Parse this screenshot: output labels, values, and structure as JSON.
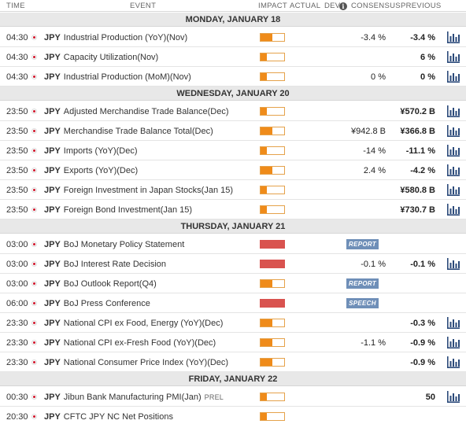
{
  "columns": {
    "time": "TIME",
    "event": "EVENT",
    "impact": "IMPACT",
    "actual": "ACTUAL",
    "dev": "DEV",
    "info_icon": "i",
    "consensus": "CONSENSUS",
    "previous": "PREVIOUS"
  },
  "colors": {
    "medium_impact": "#ef8b1a",
    "high_impact": "#d9534f",
    "tag_bg": "#6f8fb8",
    "date_band": "#e8e8e8"
  },
  "icons": {
    "flag": "japan-flag-icon",
    "chart": "bar-chart-icon"
  },
  "days": [
    {
      "date": "MONDAY, JANUARY 18",
      "events": [
        {
          "time": "04:30",
          "currency": "JPY",
          "name": "Industrial Production (YoY)(Nov)",
          "impact": "medium",
          "impact_level": 0.5,
          "actual": "",
          "tag": "",
          "consensus": "-3.4 %",
          "previous": "-3.4 %",
          "chart": true
        },
        {
          "time": "04:30",
          "currency": "JPY",
          "name": "Capacity Utilization(Nov)",
          "impact": "low",
          "impact_level": 0.25,
          "actual": "",
          "tag": "",
          "consensus": "",
          "previous": "6 %",
          "chart": true
        },
        {
          "time": "04:30",
          "currency": "JPY",
          "name": "Industrial Production (MoM)(Nov)",
          "impact": "low",
          "impact_level": 0.25,
          "actual": "",
          "tag": "",
          "consensus": "0 %",
          "previous": "0 %",
          "chart": true
        }
      ]
    },
    {
      "date": "WEDNESDAY, JANUARY 20",
      "events": [
        {
          "time": "23:50",
          "currency": "JPY",
          "name": "Adjusted Merchandise Trade Balance(Dec)",
          "impact": "low",
          "impact_level": 0.25,
          "actual": "",
          "tag": "",
          "consensus": "",
          "previous": "¥570.2 B",
          "chart": true
        },
        {
          "time": "23:50",
          "currency": "JPY",
          "name": "Merchandise Trade Balance Total(Dec)",
          "impact": "medium",
          "impact_level": 0.5,
          "actual": "",
          "tag": "",
          "consensus": "¥942.8 B",
          "previous": "¥366.8 B",
          "chart": true
        },
        {
          "time": "23:50",
          "currency": "JPY",
          "name": "Imports (YoY)(Dec)",
          "impact": "low",
          "impact_level": 0.25,
          "actual": "",
          "tag": "",
          "consensus": "-14 %",
          "previous": "-11.1 %",
          "chart": true
        },
        {
          "time": "23:50",
          "currency": "JPY",
          "name": "Exports (YoY)(Dec)",
          "impact": "medium",
          "impact_level": 0.5,
          "actual": "",
          "tag": "",
          "consensus": "2.4 %",
          "previous": "-4.2 %",
          "chart": true
        },
        {
          "time": "23:50",
          "currency": "JPY",
          "name": "Foreign Investment in Japan Stocks(Jan 15)",
          "impact": "low",
          "impact_level": 0.25,
          "actual": "",
          "tag": "",
          "consensus": "",
          "previous": "¥580.8 B",
          "chart": true
        },
        {
          "time": "23:50",
          "currency": "JPY",
          "name": "Foreign Bond Investment(Jan 15)",
          "impact": "low",
          "impact_level": 0.25,
          "actual": "",
          "tag": "",
          "consensus": "",
          "previous": "¥730.7 B",
          "chart": true
        }
      ]
    },
    {
      "date": "THURSDAY, JANUARY 21",
      "events": [
        {
          "time": "03:00",
          "currency": "JPY",
          "name": "BoJ Monetary Policy Statement",
          "impact": "high",
          "impact_level": 1,
          "actual": "",
          "tag": "REPORT",
          "consensus": "",
          "previous": "",
          "chart": false
        },
        {
          "time": "03:00",
          "currency": "JPY",
          "name": "BoJ Interest Rate Decision",
          "impact": "high",
          "impact_level": 1,
          "actual": "",
          "tag": "",
          "consensus": "-0.1 %",
          "previous": "-0.1 %",
          "chart": true
        },
        {
          "time": "03:00",
          "currency": "JPY",
          "name": "BoJ Outlook Report(Q4)",
          "impact": "medium",
          "impact_level": 0.5,
          "actual": "",
          "tag": "REPORT",
          "consensus": "",
          "previous": "",
          "chart": false
        },
        {
          "time": "06:00",
          "currency": "JPY",
          "name": "BoJ Press Conference",
          "impact": "high",
          "impact_level": 1,
          "actual": "",
          "tag": "SPEECH",
          "consensus": "",
          "previous": "",
          "chart": false
        },
        {
          "time": "23:30",
          "currency": "JPY",
          "name": "National CPI ex Food, Energy (YoY)(Dec)",
          "impact": "medium",
          "impact_level": 0.5,
          "actual": "",
          "tag": "",
          "consensus": "",
          "previous": "-0.3 %",
          "chart": true
        },
        {
          "time": "23:30",
          "currency": "JPY",
          "name": "National CPI ex-Fresh Food (YoY)(Dec)",
          "impact": "medium",
          "impact_level": 0.5,
          "actual": "",
          "tag": "",
          "consensus": "-1.1 %",
          "previous": "-0.9 %",
          "chart": true
        },
        {
          "time": "23:30",
          "currency": "JPY",
          "name": "National Consumer Price Index (YoY)(Dec)",
          "impact": "medium",
          "impact_level": 0.5,
          "actual": "",
          "tag": "",
          "consensus": "",
          "previous": "-0.9 %",
          "chart": true
        }
      ]
    },
    {
      "date": "FRIDAY, JANUARY 22",
      "events": [
        {
          "time": "00:30",
          "currency": "JPY",
          "name": "Jibun Bank Manufacturing PMI(Jan)",
          "suffix": "PREL",
          "impact": "low",
          "impact_level": 0.25,
          "actual": "",
          "tag": "",
          "consensus": "",
          "previous": "50",
          "chart": true
        },
        {
          "time": "20:30",
          "currency": "JPY",
          "name": "CFTC JPY NC Net Positions",
          "impact": "low",
          "impact_level": 0.25,
          "actual": "",
          "tag": "",
          "consensus": "",
          "previous": "",
          "chart": false
        }
      ]
    }
  ]
}
